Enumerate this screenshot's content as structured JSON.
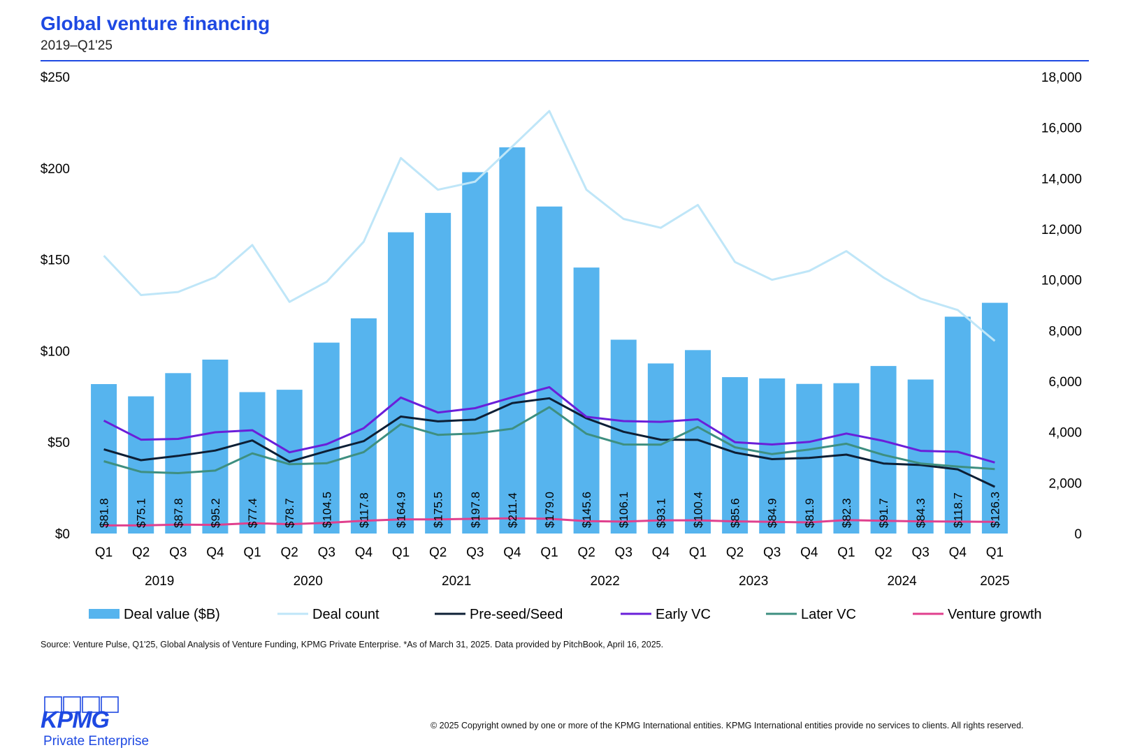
{
  "header": {
    "title": "Global venture financing",
    "subtitle": "2019–Q1'25"
  },
  "chart_data": {
    "type": "bar",
    "categories": [
      "Q1",
      "Q2",
      "Q3",
      "Q4",
      "Q1",
      "Q2",
      "Q3",
      "Q4",
      "Q1",
      "Q2",
      "Q3",
      "Q4",
      "Q1",
      "Q2",
      "Q3",
      "Q4",
      "Q1",
      "Q2",
      "Q3",
      "Q4",
      "Q1",
      "Q2",
      "Q3",
      "Q4",
      "Q1"
    ],
    "years": [
      "2019",
      "2020",
      "2021",
      "2022",
      "2023",
      "2024",
      "2025"
    ],
    "y_left": {
      "ticks": [
        "$0",
        "$50",
        "$100",
        "$150",
        "$200",
        "$250"
      ],
      "ylim": [
        0,
        250
      ]
    },
    "y_right": {
      "ticks": [
        "0",
        "2,000",
        "4,000",
        "6,000",
        "8,000",
        "10,000",
        "12,000",
        "14,000",
        "16,000",
        "18,000"
      ],
      "ylim": [
        0,
        18000
      ]
    },
    "series": [
      {
        "name": "Deal value ($B)",
        "type": "bar",
        "axis": "left",
        "color": "#56b4ee",
        "values": [
          81.8,
          75.1,
          87.8,
          95.2,
          77.4,
          78.7,
          104.5,
          117.8,
          164.9,
          175.5,
          197.8,
          211.4,
          179.0,
          145.6,
          106.1,
          93.1,
          100.4,
          85.6,
          84.9,
          81.9,
          82.3,
          91.7,
          84.3,
          118.7,
          126.3
        ],
        "labels": [
          "$81.8",
          "$75.1",
          "$87.8",
          "$95.2",
          "$77.4",
          "$78.7",
          "$104.5",
          "$117.8",
          "$164.9",
          "$175.5",
          "$197.8",
          "$211.4",
          "$179.0",
          "$145.6",
          "$106.1",
          "$93.1",
          "$100.4",
          "$85.6",
          "$84.9",
          "$81.9",
          "$82.3",
          "$91.7",
          "$84.3",
          "$118.7",
          "$126.3"
        ]
      },
      {
        "name": "Deal count",
        "type": "line",
        "axis": "right",
        "color": "#bfe6f8",
        "values": [
          10950,
          9400,
          9520,
          10100,
          11370,
          9130,
          9920,
          11500,
          14800,
          13550,
          13870,
          15250,
          16650,
          13550,
          12400,
          12050,
          12950,
          10700,
          10000,
          10350,
          11130,
          10090,
          9260,
          8810,
          7590
        ]
      },
      {
        "name": "Pre-seed/Seed",
        "type": "line",
        "axis": "right",
        "color": "#0d1f35",
        "values": [
          3320,
          2890,
          3060,
          3270,
          3670,
          2830,
          3250,
          3640,
          4610,
          4420,
          4490,
          5140,
          5330,
          4540,
          4010,
          3700,
          3690,
          3190,
          2930,
          2980,
          3110,
          2760,
          2700,
          2530,
          1840
        ]
      },
      {
        "name": "Early VC",
        "type": "line",
        "axis": "right",
        "color": "#6a1fd9",
        "values": [
          4450,
          3700,
          3730,
          3990,
          4070,
          3200,
          3520,
          4150,
          5360,
          4770,
          4940,
          5370,
          5770,
          4600,
          4430,
          4400,
          4500,
          3600,
          3510,
          3610,
          3940,
          3650,
          3260,
          3220,
          2800
        ]
      },
      {
        "name": "Later VC",
        "type": "line",
        "axis": "right",
        "color": "#3e8f80",
        "values": [
          2850,
          2430,
          2380,
          2480,
          3160,
          2730,
          2770,
          3210,
          4310,
          3890,
          3940,
          4130,
          4980,
          3930,
          3510,
          3500,
          4200,
          3400,
          3130,
          3310,
          3540,
          3100,
          2760,
          2640,
          2540
        ]
      },
      {
        "name": "Venture growth",
        "type": "line",
        "axis": "right",
        "color": "#e0408e",
        "values": [
          320,
          320,
          350,
          340,
          410,
          370,
          420,
          500,
          560,
          560,
          580,
          600,
          580,
          490,
          470,
          520,
          520,
          480,
          460,
          440,
          530,
          500,
          480,
          470,
          460
        ]
      }
    ]
  },
  "footer": {
    "source": "Source: Venture Pulse, Q1'25, Global Analysis of Venture Funding, KPMG Private Enterprise. *As of March 31, 2025. Data provided by PitchBook, April 16, 2025.",
    "copyright": "© 2025 Copyright owned by one or more of the KPMG International entities. KPMG International entities provide no services to clients. All rights reserved.",
    "logo_text": "KPMG",
    "logo_subtext": "Private Enterprise"
  }
}
